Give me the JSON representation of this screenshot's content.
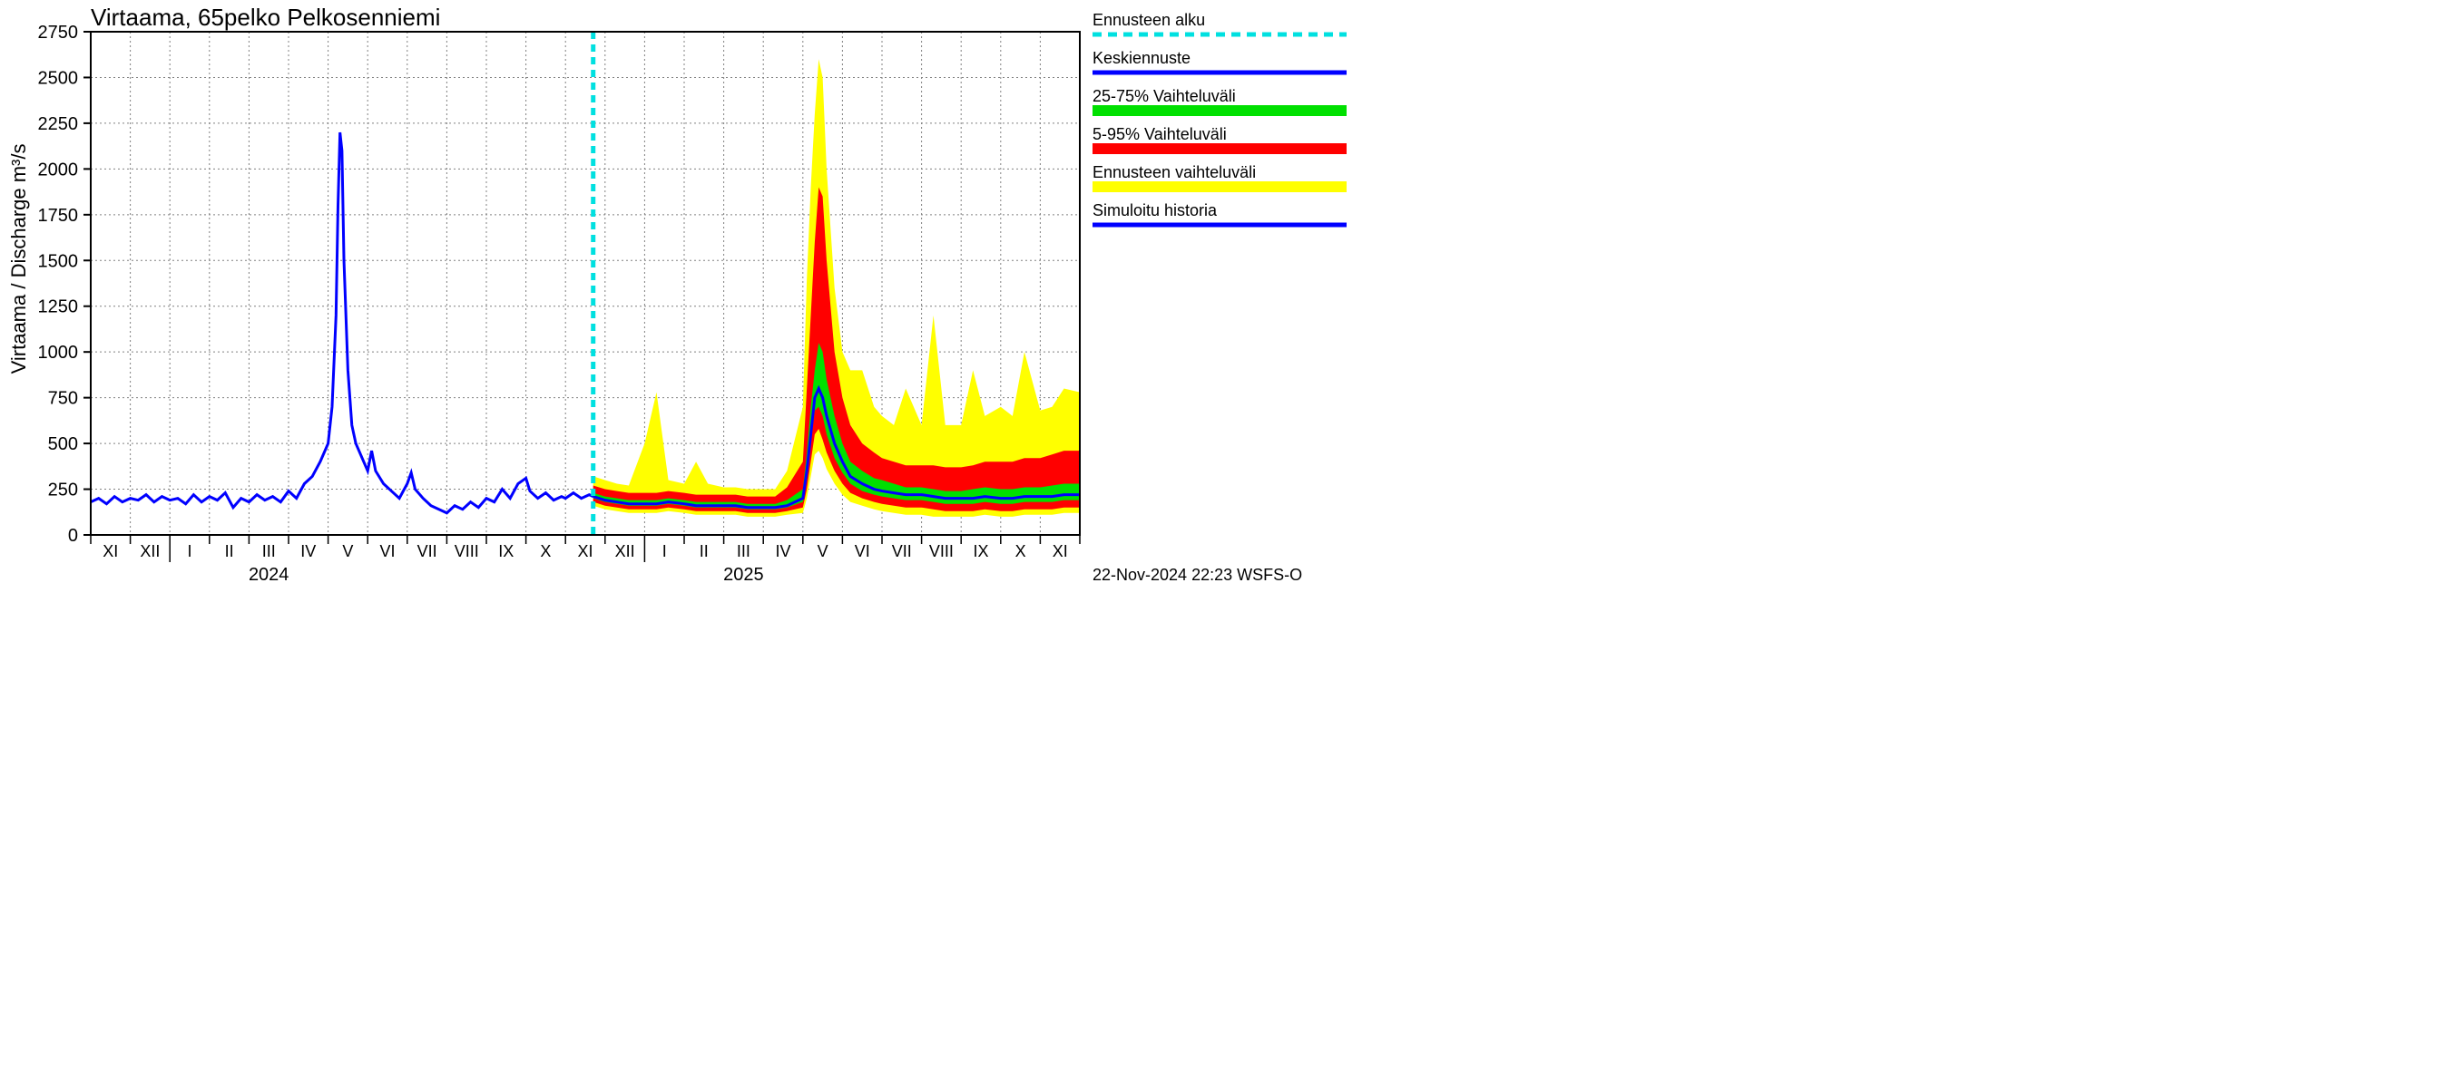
{
  "title": "Virtaama, 65pelko Pelkosenniemi",
  "ylabel": "Virtaama / Discharge   m³/s",
  "footer": "22-Nov-2024 22:23 WSFS-O",
  "year_labels": [
    "2024",
    "2025"
  ],
  "year_positions": [
    4.5,
    16.5
  ],
  "legend": {
    "forecast_start": "Ennusteen alku",
    "mean_forecast": "Keskiennuste",
    "p25_75": "25-75% Vaihteluväli",
    "p5_95": "5-95% Vaihteluväli",
    "full_range": "Ennusteen vaihteluväli",
    "simulated_history": "Simuloitu historia"
  },
  "colors": {
    "history": "#0000ff",
    "mean_forecast": "#0000ff",
    "forecast_start": "#00e0e0",
    "p25_75": "#00e000",
    "p5_95": "#ff0000",
    "full_range": "#ffff00",
    "grid": "#808080",
    "axis": "#000000",
    "background": "#ffffff"
  },
  "months": [
    "XI",
    "XII",
    "I",
    "II",
    "III",
    "IV",
    "V",
    "VI",
    "VII",
    "VIII",
    "IX",
    "X",
    "XI",
    "XII",
    "I",
    "II",
    "III",
    "IV",
    "V",
    "VI",
    "VII",
    "VIII",
    "IX",
    "X",
    "XI"
  ],
  "chart": {
    "type": "line_with_bands",
    "xlim": [
      0,
      25
    ],
    "ylim": [
      0,
      2750
    ],
    "ytick_step": 250,
    "forecast_start_x": 12.7,
    "grid_color": "#808080",
    "line_width_history": 3,
    "line_width_forecast": 3,
    "dash_forecast_start": "8,6"
  },
  "history": [
    [
      0,
      180
    ],
    [
      0.2,
      200
    ],
    [
      0.4,
      170
    ],
    [
      0.6,
      210
    ],
    [
      0.8,
      180
    ],
    [
      1,
      200
    ],
    [
      1.2,
      190
    ],
    [
      1.4,
      220
    ],
    [
      1.6,
      180
    ],
    [
      1.8,
      210
    ],
    [
      2,
      190
    ],
    [
      2.2,
      200
    ],
    [
      2.4,
      170
    ],
    [
      2.6,
      220
    ],
    [
      2.8,
      180
    ],
    [
      3,
      210
    ],
    [
      3.2,
      190
    ],
    [
      3.4,
      230
    ],
    [
      3.6,
      150
    ],
    [
      3.8,
      200
    ],
    [
      4,
      180
    ],
    [
      4.2,
      220
    ],
    [
      4.4,
      190
    ],
    [
      4.6,
      210
    ],
    [
      4.8,
      180
    ],
    [
      5,
      240
    ],
    [
      5.2,
      200
    ],
    [
      5.4,
      280
    ],
    [
      5.6,
      320
    ],
    [
      5.8,
      400
    ],
    [
      6,
      500
    ],
    [
      6.1,
      700
    ],
    [
      6.2,
      1200
    ],
    [
      6.25,
      1800
    ],
    [
      6.3,
      2200
    ],
    [
      6.35,
      2100
    ],
    [
      6.4,
      1500
    ],
    [
      6.5,
      900
    ],
    [
      6.6,
      600
    ],
    [
      6.7,
      500
    ],
    [
      6.8,
      450
    ],
    [
      7,
      350
    ],
    [
      7.1,
      460
    ],
    [
      7.2,
      350
    ],
    [
      7.4,
      280
    ],
    [
      7.6,
      240
    ],
    [
      7.8,
      200
    ],
    [
      8,
      280
    ],
    [
      8.1,
      340
    ],
    [
      8.2,
      250
    ],
    [
      8.4,
      200
    ],
    [
      8.6,
      160
    ],
    [
      8.8,
      140
    ],
    [
      9,
      120
    ],
    [
      9.2,
      160
    ],
    [
      9.4,
      140
    ],
    [
      9.6,
      180
    ],
    [
      9.8,
      150
    ],
    [
      10,
      200
    ],
    [
      10.2,
      180
    ],
    [
      10.4,
      250
    ],
    [
      10.6,
      200
    ],
    [
      10.8,
      280
    ],
    [
      11,
      310
    ],
    [
      11.1,
      240
    ],
    [
      11.3,
      200
    ],
    [
      11.5,
      230
    ],
    [
      11.7,
      190
    ],
    [
      11.9,
      210
    ],
    [
      12,
      200
    ],
    [
      12.2,
      230
    ],
    [
      12.4,
      200
    ],
    [
      12.6,
      220
    ],
    [
      12.7,
      210
    ]
  ],
  "forecast_x": [
    12.7,
    13,
    13.3,
    13.6,
    14,
    14.3,
    14.6,
    15,
    15.3,
    15.6,
    16,
    16.3,
    16.6,
    17,
    17.3,
    17.6,
    18,
    18.1,
    18.2,
    18.3,
    18.4,
    18.5,
    18.6,
    18.8,
    19,
    19.2,
    19.5,
    19.8,
    20,
    20.3,
    20.6,
    21,
    21.3,
    21.6,
    22,
    22.3,
    22.6,
    23,
    23.3,
    23.6,
    24,
    24.3,
    24.6,
    25
  ],
  "forecast_mean": [
    210,
    190,
    180,
    170,
    170,
    170,
    180,
    170,
    160,
    160,
    160,
    160,
    150,
    150,
    150,
    160,
    200,
    350,
    550,
    750,
    800,
    750,
    650,
    500,
    400,
    320,
    280,
    250,
    240,
    230,
    220,
    220,
    210,
    200,
    200,
    200,
    210,
    200,
    200,
    210,
    210,
    210,
    220,
    220
  ],
  "forecast_p25_lo": [
    200,
    180,
    170,
    160,
    160,
    160,
    170,
    160,
    150,
    150,
    150,
    150,
    140,
    140,
    140,
    150,
    180,
    300,
    500,
    680,
    700,
    650,
    550,
    420,
    340,
    280,
    240,
    220,
    210,
    200,
    190,
    190,
    180,
    170,
    170,
    170,
    180,
    170,
    170,
    180,
    180,
    180,
    190,
    190
  ],
  "forecast_p25_hi": [
    230,
    210,
    200,
    190,
    190,
    190,
    200,
    190,
    180,
    180,
    180,
    180,
    170,
    170,
    170,
    190,
    250,
    450,
    700,
    900,
    1050,
    1000,
    850,
    650,
    500,
    400,
    350,
    310,
    300,
    280,
    260,
    260,
    250,
    240,
    240,
    250,
    260,
    250,
    250,
    260,
    260,
    270,
    280,
    280
  ],
  "forecast_p5_lo": [
    180,
    160,
    150,
    140,
    140,
    140,
    150,
    140,
    130,
    130,
    130,
    130,
    120,
    120,
    120,
    130,
    150,
    250,
    400,
    550,
    580,
    520,
    450,
    350,
    280,
    230,
    200,
    180,
    170,
    160,
    150,
    150,
    140,
    130,
    130,
    130,
    140,
    130,
    130,
    140,
    140,
    140,
    150,
    150
  ],
  "forecast_p5_hi": [
    270,
    250,
    240,
    230,
    230,
    230,
    240,
    230,
    220,
    220,
    220,
    220,
    210,
    210,
    210,
    260,
    400,
    800,
    1200,
    1600,
    1900,
    1850,
    1500,
    1000,
    750,
    600,
    500,
    450,
    420,
    400,
    380,
    380,
    380,
    370,
    370,
    380,
    400,
    400,
    400,
    420,
    420,
    440,
    460,
    460
  ],
  "forecast_full_lo": [
    160,
    140,
    130,
    120,
    120,
    120,
    130,
    120,
    110,
    110,
    110,
    110,
    100,
    100,
    100,
    110,
    120,
    200,
    320,
    440,
    460,
    420,
    360,
    280,
    220,
    180,
    160,
    140,
    130,
    120,
    110,
    110,
    100,
    100,
    100,
    100,
    110,
    100,
    100,
    110,
    110,
    110,
    120,
    120
  ],
  "forecast_full_hi": [
    320,
    300,
    280,
    270,
    500,
    780,
    300,
    280,
    400,
    280,
    260,
    260,
    250,
    250,
    250,
    350,
    700,
    1400,
    1900,
    2300,
    2600,
    2500,
    2000,
    1350,
    1000,
    900,
    900,
    700,
    650,
    600,
    800,
    600,
    1200,
    600,
    600,
    900,
    650,
    700,
    650,
    1000,
    680,
    700,
    800,
    780
  ]
}
